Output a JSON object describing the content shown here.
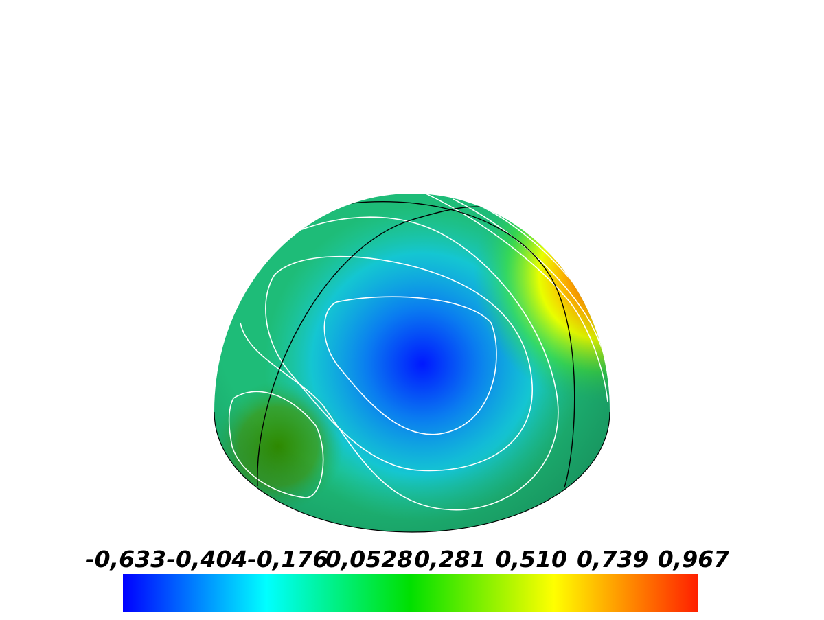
{
  "colorbar": {
    "ticks": [
      {
        "value": -0.633,
        "label": "-0,633"
      },
      {
        "value": -0.404,
        "label": "-0,404"
      },
      {
        "value": -0.176,
        "label": "-0,176"
      },
      {
        "value": 0.0528,
        "label": "0,0528"
      },
      {
        "value": 0.281,
        "label": "0,281"
      },
      {
        "value": 0.51,
        "label": "0,510"
      },
      {
        "value": 0.739,
        "label": "0,739"
      },
      {
        "value": 0.967,
        "label": "0,967"
      }
    ],
    "colors": [
      "#0000ff",
      "#00ffff",
      "#00e000",
      "#ffff00",
      "#ff2000"
    ]
  }
}
